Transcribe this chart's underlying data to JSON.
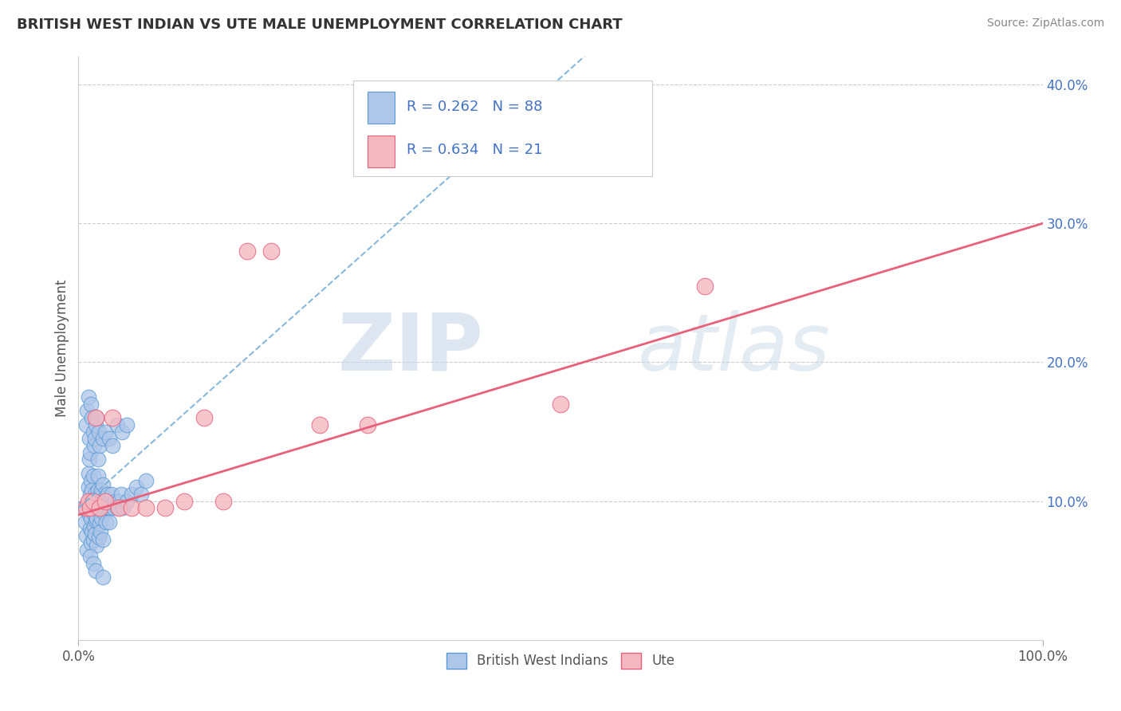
{
  "title": "BRITISH WEST INDIAN VS UTE MALE UNEMPLOYMENT CORRELATION CHART",
  "source_text": "Source: ZipAtlas.com",
  "ylabel": "Male Unemployment",
  "watermark_zip": "ZIP",
  "watermark_atlas": "atlas",
  "xlim": [
    0,
    1.0
  ],
  "ylim": [
    0,
    0.42
  ],
  "xticks": [
    0.0,
    1.0
  ],
  "xticklabels": [
    "0.0%",
    "100.0%"
  ],
  "yticks": [
    0.1,
    0.2,
    0.3,
    0.4
  ],
  "yticklabels": [
    "10.0%",
    "20.0%",
    "30.0%",
    "40.0%"
  ],
  "series1_name": "British West Indians",
  "series1_color": "#aec6e8",
  "series1_edge_color": "#5b9bd5",
  "series1_R": 0.262,
  "series1_N": 88,
  "series2_name": "Ute",
  "series2_color": "#f4b8c1",
  "series2_edge_color": "#e8607a",
  "series2_R": 0.634,
  "series2_N": 21,
  "reg1_color": "#7ab0d8",
  "reg2_color": "#e8607a",
  "grid_color": "#cccccc",
  "background_color": "#ffffff",
  "tick_label_color": "#4472c4",
  "title_color": "#333333",
  "source_color": "#888888",
  "ylabel_color": "#555555",
  "reg1_intercept": 0.095,
  "reg1_slope": 0.62,
  "reg2_intercept": 0.09,
  "reg2_slope": 0.21,
  "series1_x": [
    0.005,
    0.007,
    0.008,
    0.009,
    0.01,
    0.01,
    0.01,
    0.011,
    0.011,
    0.012,
    0.012,
    0.012,
    0.013,
    0.013,
    0.013,
    0.014,
    0.014,
    0.014,
    0.015,
    0.015,
    0.015,
    0.016,
    0.016,
    0.017,
    0.017,
    0.018,
    0.018,
    0.019,
    0.019,
    0.02,
    0.02,
    0.02,
    0.021,
    0.021,
    0.022,
    0.022,
    0.023,
    0.023,
    0.024,
    0.024,
    0.025,
    0.025,
    0.026,
    0.027,
    0.028,
    0.029,
    0.03,
    0.031,
    0.032,
    0.033,
    0.034,
    0.036,
    0.038,
    0.04,
    0.042,
    0.044,
    0.046,
    0.05,
    0.055,
    0.06,
    0.065,
    0.07,
    0.008,
    0.009,
    0.01,
    0.011,
    0.012,
    0.013,
    0.014,
    0.015,
    0.016,
    0.017,
    0.018,
    0.019,
    0.02,
    0.021,
    0.022,
    0.025,
    0.028,
    0.032,
    0.035,
    0.04,
    0.045,
    0.05,
    0.012,
    0.015,
    0.018,
    0.025
  ],
  "series1_y": [
    0.095,
    0.085,
    0.075,
    0.065,
    0.1,
    0.11,
    0.12,
    0.09,
    0.13,
    0.08,
    0.095,
    0.105,
    0.07,
    0.088,
    0.115,
    0.078,
    0.098,
    0.108,
    0.072,
    0.092,
    0.118,
    0.082,
    0.102,
    0.076,
    0.096,
    0.086,
    0.106,
    0.068,
    0.088,
    0.098,
    0.108,
    0.118,
    0.074,
    0.094,
    0.084,
    0.104,
    0.078,
    0.098,
    0.088,
    0.108,
    0.072,
    0.112,
    0.092,
    0.102,
    0.095,
    0.085,
    0.105,
    0.095,
    0.085,
    0.095,
    0.105,
    0.095,
    0.1,
    0.095,
    0.1,
    0.105,
    0.095,
    0.1,
    0.105,
    0.11,
    0.105,
    0.115,
    0.155,
    0.165,
    0.175,
    0.145,
    0.135,
    0.17,
    0.16,
    0.15,
    0.14,
    0.145,
    0.155,
    0.16,
    0.13,
    0.15,
    0.14,
    0.145,
    0.15,
    0.145,
    0.14,
    0.155,
    0.15,
    0.155,
    0.06,
    0.055,
    0.05,
    0.045
  ],
  "series2_x": [
    0.008,
    0.01,
    0.012,
    0.015,
    0.018,
    0.022,
    0.028,
    0.035,
    0.042,
    0.055,
    0.07,
    0.09,
    0.11,
    0.13,
    0.15,
    0.175,
    0.2,
    0.25,
    0.3,
    0.5,
    0.65
  ],
  "series2_y": [
    0.095,
    0.1,
    0.095,
    0.1,
    0.16,
    0.095,
    0.1,
    0.16,
    0.095,
    0.095,
    0.095,
    0.095,
    0.1,
    0.16,
    0.1,
    0.28,
    0.28,
    0.155,
    0.155,
    0.17,
    0.255
  ]
}
